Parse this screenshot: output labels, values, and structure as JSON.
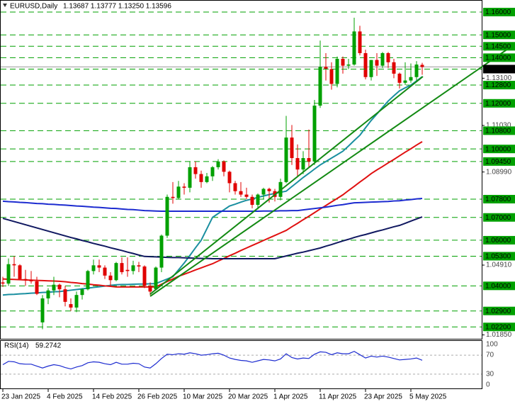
{
  "chart_data": [
    {
      "type": "candlestick",
      "title": "EURUSD,Daily",
      "ohlc_text": "1.13687 1.13777 1.13250 1.13596",
      "categories": [
        "23 Jan 2025",
        null,
        null,
        null,
        null,
        null,
        null,
        null,
        "4 Feb 2025",
        null,
        null,
        null,
        null,
        null,
        null,
        null,
        "14 Feb 2025",
        null,
        null,
        null,
        null,
        null,
        null,
        null,
        "26 Feb 2025",
        null,
        null,
        null,
        null,
        null,
        null,
        null,
        "10 Mar 2025",
        null,
        null,
        null,
        null,
        null,
        null,
        null,
        "20 Mar 2025",
        null,
        null,
        null,
        null,
        null,
        null,
        null,
        "1 Apr 2025",
        null,
        null,
        null,
        null,
        null,
        null,
        null,
        "11 Apr 2025",
        null,
        null,
        null,
        null,
        null,
        null,
        null,
        "23 Apr 2025",
        null,
        null,
        null,
        null,
        null,
        null,
        null,
        "5 May 2025",
        null,
        null
      ],
      "up_color": "#00a000",
      "down_color": "#e00000",
      "candles": [
        {
          "o": 1.0415,
          "h": 1.044,
          "l": 1.0395,
          "c": 1.041
        },
        {
          "o": 1.041,
          "h": 1.052,
          "l": 1.04,
          "c": 1.0495
        },
        {
          "o": 1.0495,
          "h": 1.053,
          "l": 1.044,
          "c": 1.049
        },
        {
          "o": 1.049,
          "h": 1.0495,
          "l": 1.043,
          "c": 1.043
        },
        {
          "o": 1.043,
          "h": 1.047,
          "l": 1.04,
          "c": 1.0425
        },
        {
          "o": 1.0425,
          "h": 1.0465,
          "l": 1.041,
          "c": 1.042
        },
        {
          "o": 1.042,
          "h": 1.044,
          "l": 1.036,
          "c": 1.0365
        },
        {
          "o": 1.024,
          "h": 1.036,
          "l": 1.021,
          "c": 1.0345
        },
        {
          "o": 1.0345,
          "h": 1.039,
          "l": 1.032,
          "c": 1.038
        },
        {
          "o": 1.038,
          "h": 1.044,
          "l": 1.036,
          "c": 1.0405
        },
        {
          "o": 1.0405,
          "h": 1.041,
          "l": 1.035,
          "c": 1.0385
        },
        {
          "o": 1.0385,
          "h": 1.04,
          "l": 1.031,
          "c": 1.033
        },
        {
          "o": 1.032,
          "h": 1.0345,
          "l": 1.029,
          "c": 1.0305
        },
        {
          "o": 1.0305,
          "h": 1.0375,
          "l": 1.0285,
          "c": 1.036
        },
        {
          "o": 1.036,
          "h": 1.039,
          "l": 1.034,
          "c": 1.0385
        },
        {
          "o": 1.0385,
          "h": 1.047,
          "l": 1.038,
          "c": 1.0465
        },
        {
          "o": 1.0465,
          "h": 1.0515,
          "l": 1.045,
          "c": 1.049
        },
        {
          "o": 1.049,
          "h": 1.0515,
          "l": 1.046,
          "c": 1.048
        },
        {
          "o": 1.048,
          "h": 1.049,
          "l": 1.043,
          "c": 1.0445
        },
        {
          "o": 1.0445,
          "h": 1.046,
          "l": 1.04,
          "c": 1.0425
        },
        {
          "o": 1.0425,
          "h": 1.0505,
          "l": 1.042,
          "c": 1.05
        },
        {
          "o": 1.05,
          "h": 1.0525,
          "l": 1.045,
          "c": 1.046
        },
        {
          "o": 1.047,
          "h": 1.0525,
          "l": 1.044,
          "c": 1.0465
        },
        {
          "o": 1.0465,
          "h": 1.051,
          "l": 1.045,
          "c": 1.049
        },
        {
          "o": 1.049,
          "h": 1.0505,
          "l": 1.046,
          "c": 1.0485
        },
        {
          "o": 1.0485,
          "h": 1.049,
          "l": 1.039,
          "c": 1.04
        },
        {
          "o": 1.04,
          "h": 1.0415,
          "l": 1.036,
          "c": 1.0375
        },
        {
          "o": 1.0385,
          "h": 1.0485,
          "l": 1.038,
          "c": 1.048
        },
        {
          "o": 1.048,
          "h": 1.0625,
          "l": 1.046,
          "c": 1.062
        },
        {
          "o": 1.062,
          "h": 1.08,
          "l": 1.061,
          "c": 1.079
        },
        {
          "o": 1.079,
          "h": 1.0855,
          "l": 1.076,
          "c": 1.0785
        },
        {
          "o": 1.0785,
          "h": 1.086,
          "l": 1.078,
          "c": 1.0835
        },
        {
          "o": 1.0835,
          "h": 1.085,
          "l": 1.08,
          "c": 1.083
        },
        {
          "o": 1.083,
          "h": 1.0945,
          "l": 1.081,
          "c": 1.092
        },
        {
          "o": 1.092,
          "h": 1.0945,
          "l": 1.087,
          "c": 1.089
        },
        {
          "o": 1.089,
          "h": 1.0905,
          "l": 1.083,
          "c": 1.0855
        },
        {
          "o": 1.0855,
          "h": 1.0895,
          "l": 1.085,
          "c": 1.088
        },
        {
          "o": 1.088,
          "h": 1.0925,
          "l": 1.086,
          "c": 1.092
        },
        {
          "o": 1.092,
          "h": 1.0955,
          "l": 1.091,
          "c": 1.0945
        },
        {
          "o": 1.0945,
          "h": 1.095,
          "l": 1.088,
          "c": 1.09
        },
        {
          "o": 1.09,
          "h": 1.0905,
          "l": 1.081,
          "c": 1.085
        },
        {
          "o": 1.085,
          "h": 1.086,
          "l": 1.08,
          "c": 1.0815
        },
        {
          "o": 1.0815,
          "h": 1.0855,
          "l": 1.079,
          "c": 1.08
        },
        {
          "o": 1.08,
          "h": 1.083,
          "l": 1.078,
          "c": 1.079
        },
        {
          "o": 1.079,
          "h": 1.08,
          "l": 1.074,
          "c": 1.0755
        },
        {
          "o": 1.0755,
          "h": 1.0805,
          "l": 1.0735,
          "c": 1.08
        },
        {
          "o": 1.08,
          "h": 1.083,
          "l": 1.078,
          "c": 1.0825
        },
        {
          "o": 1.0825,
          "h": 1.083,
          "l": 1.0765,
          "c": 1.0815
        },
        {
          "o": 1.0815,
          "h": 1.0825,
          "l": 1.077,
          "c": 1.079
        },
        {
          "o": 1.079,
          "h": 1.087,
          "l": 1.0775,
          "c": 1.0855
        },
        {
          "o": 1.0855,
          "h": 1.1145,
          "l": 1.085,
          "c": 1.105
        },
        {
          "o": 1.105,
          "h": 1.1105,
          "l": 1.093,
          "c": 1.096
        },
        {
          "o": 1.096,
          "h": 1.102,
          "l": 1.088,
          "c": 1.091
        },
        {
          "o": 1.091,
          "h": 1.099,
          "l": 1.089,
          "c": 1.096
        },
        {
          "o": 1.096,
          "h": 1.1085,
          "l": 1.092,
          "c": 1.0945
        },
        {
          "o": 1.0945,
          "h": 1.1215,
          "l": 1.093,
          "c": 1.119
        },
        {
          "o": 1.119,
          "h": 1.1475,
          "l": 1.118,
          "c": 1.136
        },
        {
          "o": 1.136,
          "h": 1.142,
          "l": 1.13,
          "c": 1.135
        },
        {
          "o": 1.135,
          "h": 1.138,
          "l": 1.126,
          "c": 1.1285
        },
        {
          "o": 1.1285,
          "h": 1.1405,
          "l": 1.127,
          "c": 1.1395
        },
        {
          "o": 1.1395,
          "h": 1.1405,
          "l": 1.133,
          "c": 1.1365
        },
        {
          "o": 1.1365,
          "h": 1.1395,
          "l": 1.135,
          "c": 1.137
        },
        {
          "o": 1.137,
          "h": 1.1575,
          "l": 1.1365,
          "c": 1.1515
        },
        {
          "o": 1.1515,
          "h": 1.154,
          "l": 1.141,
          "c": 1.142
        },
        {
          "o": 1.142,
          "h": 1.1435,
          "l": 1.1305,
          "c": 1.1315
        },
        {
          "o": 1.1315,
          "h": 1.139,
          "l": 1.13,
          "c": 1.139
        },
        {
          "o": 1.139,
          "h": 1.142,
          "l": 1.132,
          "c": 1.1365
        },
        {
          "o": 1.1365,
          "h": 1.1425,
          "l": 1.1355,
          "c": 1.142
        },
        {
          "o": 1.142,
          "h": 1.1425,
          "l": 1.1355,
          "c": 1.138
        },
        {
          "o": 1.138,
          "h": 1.1395,
          "l": 1.131,
          "c": 1.133
        },
        {
          "o": 1.133,
          "h": 1.1335,
          "l": 1.1265,
          "c": 1.129
        },
        {
          "o": 1.129,
          "h": 1.138,
          "l": 1.128,
          "c": 1.13
        },
        {
          "o": 1.13,
          "h": 1.1375,
          "l": 1.129,
          "c": 1.1315
        },
        {
          "o": 1.1315,
          "h": 1.1385,
          "l": 1.13,
          "c": 1.137
        },
        {
          "o": 1.13687,
          "h": 1.13777,
          "l": 1.1325,
          "c": 1.13596
        }
      ],
      "series": [
        {
          "color": "#1a8fa0",
          "values": [
            1.036,
            1.0362,
            1.0363,
            1.0365,
            1.0366,
            1.0368,
            1.0369,
            1.0371,
            1.0372,
            1.0374,
            1.0375,
            1.0378,
            1.0381,
            1.0384,
            1.0387,
            1.039,
            1.0393,
            1.0396,
            1.0399,
            1.0402,
            1.0405,
            1.0406,
            1.0406,
            1.0407,
            1.0408,
            1.0408,
            1.0409,
            1.041,
            1.042,
            1.043,
            1.044,
            1.047,
            1.05,
            1.0533,
            1.0567,
            1.06,
            1.065,
            1.07,
            1.0717,
            1.0733,
            1.075,
            1.0758,
            1.0767,
            1.0775,
            1.0781,
            1.0788,
            1.0794,
            1.08,
            1.0805,
            1.081,
            1.0815,
            1.0835,
            1.0855,
            1.0875,
            1.0893,
            1.0912,
            1.093,
            1.0945,
            1.096,
            1.0975,
            1.099,
            1.1013,
            1.1037,
            1.106,
            1.1093,
            1.1125,
            1.1153,
            1.1182,
            1.121,
            1.1233,
            1.1255,
            1.1268,
            1.128,
            1.1298,
            1.1317
          ]
        },
        {
          "color": "#e01010",
          "values": [
            1.043,
            1.0429,
            1.0428,
            1.0427,
            1.0426,
            1.0425,
            1.0424,
            1.0423,
            1.0422,
            1.0421,
            1.042,
            1.0418,
            1.0415,
            1.0413,
            1.041,
            1.0408,
            1.0405,
            1.0403,
            1.04,
            1.0398,
            1.0395,
            1.0395,
            1.0395,
            1.0395,
            1.0395,
            1.0395,
            1.0395,
            1.0395,
            1.0407,
            1.0419,
            1.043,
            1.0442,
            1.0451,
            1.046,
            1.047,
            1.0479,
            1.0488,
            1.0497,
            1.0509,
            1.052,
            1.0532,
            1.0543,
            1.0555,
            1.0566,
            1.0577,
            1.0588,
            1.0599,
            1.061,
            1.0621,
            1.0632,
            1.0643,
            1.0659,
            1.0674,
            1.069,
            1.0705,
            1.0721,
            1.0737,
            1.0752,
            1.0768,
            1.0783,
            1.0799,
            1.0818,
            1.0836,
            1.0855,
            1.0873,
            1.0892,
            1.0908,
            1.0923,
            1.0939,
            1.0954,
            1.097,
            1.0986,
            1.1001,
            1.1017,
            1.1032
          ]
        },
        {
          "color": "#1c2bd0",
          "values": [
            1.0771,
            1.0769,
            1.0768,
            1.0766,
            1.0765,
            1.0763,
            1.0761,
            1.076,
            1.0758,
            1.0757,
            1.0755,
            1.0754,
            1.0752,
            1.075,
            1.0749,
            1.0747,
            1.0745,
            1.0744,
            1.0742,
            1.074,
            1.0739,
            1.0737,
            1.0735,
            1.0734,
            1.0732,
            1.073,
            1.0729,
            1.0728,
            1.0727,
            1.0727,
            1.0727,
            1.0727,
            1.0727,
            1.0727,
            1.0727,
            1.0727,
            1.0727,
            1.0727,
            1.0727,
            1.0727,
            1.0727,
            1.0727,
            1.0727,
            1.0727,
            1.0727,
            1.0727,
            1.0728,
            1.0728,
            1.0728,
            1.0729,
            1.0729,
            1.073,
            1.073,
            1.0733,
            1.0736,
            1.0739,
            1.0742,
            1.0745,
            1.0749,
            1.0753,
            1.0756,
            1.076,
            1.0764,
            1.0765,
            1.0766,
            1.0767,
            1.0768,
            1.0769,
            1.077,
            1.0772,
            1.0773,
            1.0776,
            1.0778,
            1.0781,
            1.0783
          ]
        },
        {
          "color": "#101860",
          "values": [
            1.0696,
            1.0689,
            1.0682,
            1.0675,
            1.0668,
            1.0661,
            1.0654,
            1.0647,
            1.064,
            1.0633,
            1.0626,
            1.0619,
            1.0612,
            1.0606,
            1.0599,
            1.0593,
            1.0586,
            1.058,
            1.0574,
            1.0567,
            1.0561,
            1.0555,
            1.0548,
            1.0542,
            1.0535,
            1.0529,
            1.0528,
            1.0527,
            1.0526,
            1.0525,
            1.0524,
            1.0524,
            1.0523,
            1.0522,
            1.0521,
            1.052,
            1.052,
            1.0519,
            1.0519,
            1.0519,
            1.0519,
            1.0519,
            1.0519,
            1.0519,
            1.0519,
            1.0519,
            1.0519,
            1.0519,
            1.0519,
            1.0525,
            1.0531,
            1.0537,
            1.0543,
            1.0548,
            1.0554,
            1.056,
            1.0566,
            1.0574,
            1.0581,
            1.0589,
            1.0597,
            1.0604,
            1.0612,
            1.0619,
            1.0625,
            1.0632,
            1.0639,
            1.0645,
            1.0652,
            1.0659,
            1.0665,
            1.0674,
            1.0684,
            1.0693,
            1.0702
          ]
        }
      ],
      "ylim": [
        1.0168,
        1.1628
      ],
      "yticks": [
        {
          "value": 1.131,
          "label": "1.13100"
        },
        {
          "value": 1.1103,
          "label": "1.11030"
        },
        {
          "value": 1.0899,
          "label": "1.08990"
        },
        {
          "value": 1.0491,
          "label": "1.04910"
        },
        {
          "value": 1.0185,
          "label": "1.01850"
        }
      ],
      "level_color": "#00a000",
      "levels": [
        {
          "value": 1.16,
          "label": "1.16000"
        },
        {
          "value": 1.15,
          "label": "1.15000"
        },
        {
          "value": 1.145,
          "label": "1.14500"
        },
        {
          "value": 1.14,
          "label": "1.14000"
        },
        {
          "value": 1.128,
          "label": "1.12800"
        },
        {
          "value": 1.12,
          "label": "1.12000"
        },
        {
          "value": 1.108,
          "label": "1.10800"
        },
        {
          "value": 1.1,
          "label": "1.10000"
        },
        {
          "value": 1.0945,
          "label": "1.09450"
        },
        {
          "value": 1.078,
          "label": "1.07800"
        },
        {
          "value": 1.07,
          "label": "1.07000"
        },
        {
          "value": 1.06,
          "label": "1.06000"
        },
        {
          "value": 1.053,
          "label": "1.05300"
        },
        {
          "value": 1.04,
          "label": "1.04000"
        },
        {
          "value": 1.029,
          "label": "1.02900"
        },
        {
          "value": 1.022,
          "label": "1.02200"
        }
      ],
      "price_label": {
        "value": 1.135,
        "label": "1.13500",
        "color": "#000000"
      },
      "last_price": 1.13596
    },
    {
      "type": "line",
      "title": "RSI(14)",
      "color": "#1c2bd0",
      "values": [
        50,
        57,
        56,
        52,
        51,
        51,
        47,
        43,
        47,
        50,
        48,
        44,
        41,
        45,
        48,
        54,
        56,
        55,
        52,
        50,
        55,
        51,
        51,
        53,
        52,
        45,
        43,
        52,
        63,
        72,
        71,
        73,
        72,
        75,
        73,
        70,
        71,
        73,
        74,
        70,
        64,
        61,
        59,
        58,
        55,
        58,
        61,
        60,
        58,
        62,
        73,
        65,
        62,
        64,
        63,
        72,
        77,
        76,
        71,
        75,
        73,
        73,
        78,
        71,
        64,
        68,
        66,
        68,
        66,
        63,
        60,
        61,
        62,
        64,
        59.2742
      ],
      "ylim": [
        0,
        100
      ],
      "yticks": [
        100,
        70,
        30,
        0
      ]
    }
  ]
}
